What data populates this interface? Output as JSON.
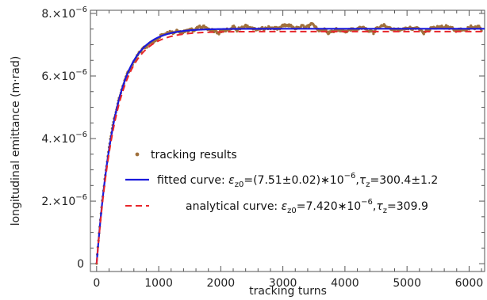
{
  "chart_data": {
    "type": "line",
    "title": "",
    "xlabel": "tracking turns",
    "ylabel": "longitudinal emittance (m·rad)",
    "xlim": [
      -100,
      6250
    ],
    "ylim": [
      -2.5e-07,
      8.1e-06
    ],
    "x_ticks": [
      {
        "value": 0,
        "label": "0"
      },
      {
        "value": 1000,
        "label": "1000"
      },
      {
        "value": 2000,
        "label": "2000"
      },
      {
        "value": 3000,
        "label": "3000"
      },
      {
        "value": 4000,
        "label": "4000"
      },
      {
        "value": 5000,
        "label": "5000"
      },
      {
        "value": 6000,
        "label": "6000"
      }
    ],
    "y_ticks": [
      {
        "value": 0,
        "mantissa": "0",
        "exponent": ""
      },
      {
        "value": 2e-06,
        "mantissa": "2.×10",
        "exponent": "−6"
      },
      {
        "value": 4e-06,
        "mantissa": "4.×10",
        "exponent": "−6"
      },
      {
        "value": 6e-06,
        "mantissa": "6.×10",
        "exponent": "−6"
      },
      {
        "value": 8e-06,
        "mantissa": "8.×10",
        "exponent": "−6"
      }
    ],
    "grid": false,
    "legend_position": "center-right",
    "series": [
      {
        "name": "tracking results",
        "style": "points",
        "color": "#a0703c",
        "model": {
          "eps0": 7.51e-06,
          "tau": 300.4,
          "noise": 9e-08,
          "x_max": 6200,
          "step": 10
        }
      },
      {
        "name": "fitted curve: ε_z0=(7.51±0.02)*10^−6,τ_z=300.4±1.2",
        "style": "solid",
        "color": "#1a1adc",
        "model": {
          "eps0": 7.51e-06,
          "tau": 300.4,
          "x_max": 6250
        }
      },
      {
        "name": "analytical curve: ε_z0=7.420*10^−6,τ_z=309.9",
        "style": "dashed",
        "color": "#e8262b",
        "model": {
          "eps0": 7.42e-06,
          "tau": 309.9,
          "x_max": 6250
        }
      }
    ],
    "legend": {
      "points": "tracking results",
      "fit_prefix": "fitted curve: ",
      "fit_eps": "ε",
      "fit_eps_sub": "z0",
      "fit_mid": "=(7.51±0.02)∗10",
      "fit_exp": "−6",
      "fit_sep": ",",
      "fit_tau": "τ",
      "fit_tau_sub": "z",
      "fit_tail": "=300.4±1.2",
      "ana_prefix": "analytical curve: ",
      "ana_eps": "ε",
      "ana_eps_sub": "z0",
      "ana_mid": "=7.420∗10",
      "ana_exp": "−6",
      "ana_sep": ",",
      "ana_tau": "τ",
      "ana_tau_sub": "z",
      "ana_tail": "=309.9"
    }
  }
}
